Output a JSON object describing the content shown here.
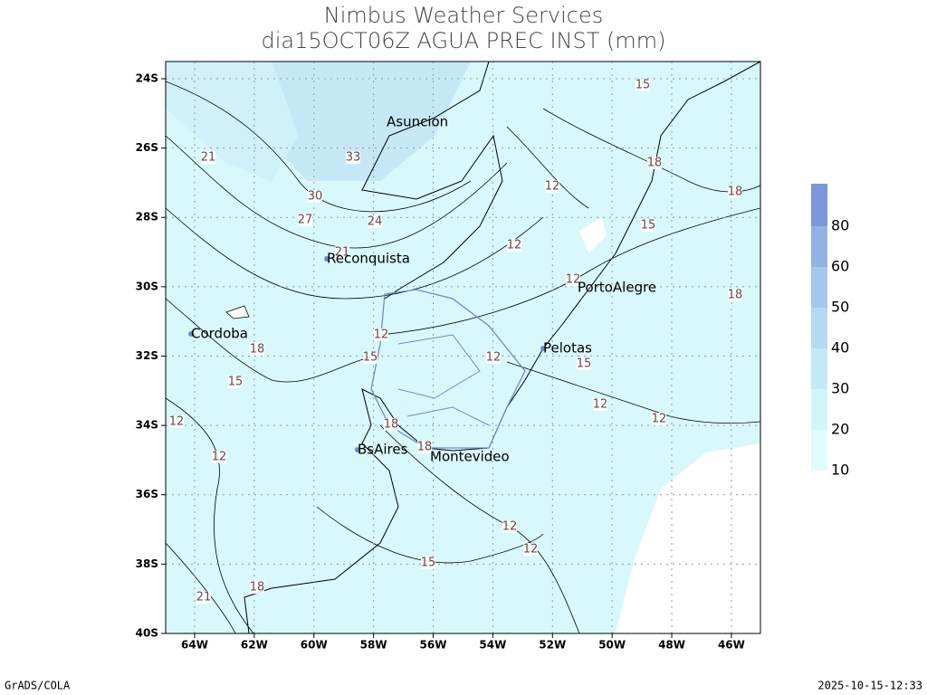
{
  "title": [
    "Nimbus Weather Services",
    "dia15OCT06Z AGUA PREC INST (mm)"
  ],
  "lat_ticks": [
    {
      "value": -24,
      "label": "24S"
    },
    {
      "value": -26,
      "label": "26S"
    },
    {
      "value": -28,
      "label": "28S"
    },
    {
      "value": -30,
      "label": "30S"
    },
    {
      "value": -32,
      "label": "32S"
    },
    {
      "value": -34,
      "label": "34S"
    },
    {
      "value": -36,
      "label": "36S"
    },
    {
      "value": -38,
      "label": "38S"
    },
    {
      "value": -40,
      "label": "40S"
    }
  ],
  "lon_ticks": [
    {
      "value": -64,
      "label": "64W"
    },
    {
      "value": -62,
      "label": "62W"
    },
    {
      "value": -60,
      "label": "60W"
    },
    {
      "value": -58,
      "label": "58W"
    },
    {
      "value": -56,
      "label": "56W"
    },
    {
      "value": -54,
      "label": "54W"
    },
    {
      "value": -52,
      "label": "52W"
    },
    {
      "value": -50,
      "label": "50W"
    },
    {
      "value": -48,
      "label": "48W"
    },
    {
      "value": -46,
      "label": "46W"
    }
  ],
  "cities": [
    "Asuncion",
    "Reconquista",
    "PortoAlegre",
    "Cordoba",
    "Pelotas",
    "BsAires",
    "Montevideo"
  ],
  "contour_labels": [
    15,
    33,
    21,
    18,
    12,
    18,
    30,
    27,
    24,
    15,
    12,
    21,
    12,
    18,
    12,
    18,
    15,
    12,
    15,
    15,
    12,
    12,
    12,
    18,
    18,
    12,
    12,
    12,
    15,
    18,
    21
  ],
  "colorbar": {
    "levels": [
      10,
      20,
      30,
      40,
      50,
      60,
      80
    ],
    "colors": [
      "#e0fdfd",
      "#d0f6fa",
      "#c2eaf6",
      "#b2daf2",
      "#a4c8ec",
      "#92b2e6",
      "#7c98dc"
    ]
  },
  "footer": {
    "left": "GrADS/COLA",
    "right": "2025-10-15-12:33"
  }
}
